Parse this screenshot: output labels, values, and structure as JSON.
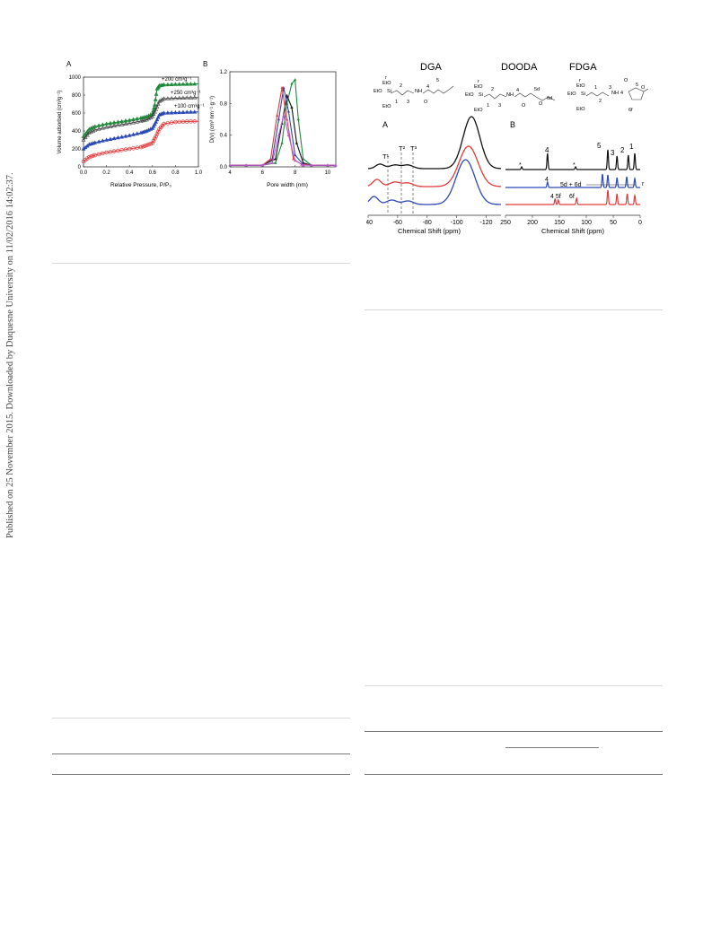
{
  "side_note": "Published on 25 November 2015. Downloaded by Duquesne University on 11/02/2016 14:02:37.",
  "figure_left": {
    "panel_a": {
      "letter": "A",
      "y_axis_label": "Volume adsorbed (cm³g⁻¹)",
      "x_axis_label": "Relative Pressure, P/P₀",
      "y_ticks": [
        "0",
        "200",
        "400",
        "600",
        "800",
        "1000"
      ],
      "x_ticks": [
        "0.0",
        "0.2",
        "0.4",
        "0.6",
        "0.8",
        "1.0"
      ],
      "offset_labels": [
        "+200 cm³g⁻¹",
        "+250 cm³g⁻¹",
        "+100 cm³g⁻¹"
      ]
    },
    "panel_b": {
      "letter": "B",
      "y_axis_label": "D(v) (cm³ nm⁻¹ g⁻¹)",
      "x_axis_label": "Pore width (nm)",
      "y_ticks": [
        "0.0",
        "0.4",
        "0.8",
        "1.2"
      ],
      "x_ticks": [
        "4",
        "6",
        "8",
        "10"
      ]
    }
  },
  "figure_right": {
    "structures": [
      {
        "name": "DGA",
        "labels": [
          "r",
          "EtO",
          "EtO",
          "Si",
          "EtO",
          "2",
          "1",
          "3",
          "NH",
          "4",
          "5",
          "O"
        ]
      },
      {
        "name": "DOODA",
        "labels": [
          "r",
          "EtO",
          "EtO",
          "Si",
          "EtO",
          "2",
          "1",
          "3",
          "NH",
          "4",
          "5d",
          "O",
          "6d",
          "O"
        ]
      },
      {
        "name": "FDGA",
        "labels": [
          "r",
          "EtO",
          "EtO",
          "Si",
          "EtO",
          "1",
          "2",
          "3",
          "NH",
          "4",
          "O",
          "5",
          "6f",
          "O"
        ]
      }
    ],
    "panel_a": {
      "letter": "A",
      "x_ticks": [
        "-40",
        "-60",
        "-80",
        "-100",
        "-120"
      ],
      "x_axis_label": "Chemical Shift (ppm)",
      "peak_labels": [
        "T¹",
        "T²",
        "T³"
      ]
    },
    "panel_b": {
      "letter": "B",
      "x_ticks": [
        "250",
        "200",
        "150",
        "100",
        "50",
        "0"
      ],
      "x_axis_label": "Chemical Shift (ppm)",
      "peak_labels": [
        "4",
        "5",
        "3",
        "2",
        "1",
        "4",
        "5d + 6d",
        "r",
        "4 5f",
        "6f",
        "*",
        "*"
      ]
    }
  },
  "chart_data": [
    {
      "type": "scatter",
      "xlabel": "Relative Pressure, P/P₀",
      "ylabel": "Volume adsorbed (cm³g⁻¹)",
      "xlim": [
        0,
        1.0
      ],
      "ylim": [
        0,
        1000
      ],
      "series": [
        {
          "color": "#1e8a3a",
          "marker": "filled-triangle",
          "x": [
            0.0,
            0.05,
            0.1,
            0.2,
            0.3,
            0.4,
            0.5,
            0.55,
            0.6,
            0.62,
            0.64,
            0.66,
            0.7,
            0.8,
            0.9,
            1.0
          ],
          "y": [
            340,
            420,
            450,
            480,
            500,
            520,
            545,
            560,
            590,
            690,
            870,
            905,
            915,
            920,
            922,
            925
          ]
        },
        {
          "color": "#444444",
          "marker": "open-triangle",
          "x": [
            0.0,
            0.05,
            0.1,
            0.2,
            0.3,
            0.4,
            0.5,
            0.55,
            0.6,
            0.63,
            0.66,
            0.7,
            0.8,
            0.9,
            1.0
          ],
          "y": [
            300,
            380,
            410,
            440,
            465,
            485,
            510,
            525,
            560,
            640,
            730,
            760,
            765,
            770,
            772
          ]
        },
        {
          "color": "#2a49b5",
          "marker": "filled-triangle",
          "x": [
            0.0,
            0.05,
            0.1,
            0.2,
            0.3,
            0.4,
            0.5,
            0.55,
            0.6,
            0.63,
            0.66,
            0.7,
            0.8,
            0.9,
            1.0
          ],
          "y": [
            200,
            250,
            270,
            300,
            325,
            350,
            380,
            400,
            430,
            500,
            580,
            600,
            605,
            610,
            612
          ]
        },
        {
          "color": "#e23a3a",
          "marker": "open-circle",
          "x": [
            0.0,
            0.05,
            0.1,
            0.2,
            0.3,
            0.4,
            0.5,
            0.55,
            0.6,
            0.63,
            0.66,
            0.7,
            0.8,
            0.9,
            1.0
          ],
          "y": [
            60,
            110,
            130,
            160,
            180,
            200,
            220,
            240,
            265,
            340,
            420,
            480,
            500,
            505,
            508
          ]
        }
      ]
    },
    {
      "type": "line",
      "xlabel": "Pore width (nm)",
      "ylabel": "D(v) (cm³ nm⁻¹ g⁻¹)",
      "xlim": [
        4,
        10.5
      ],
      "ylim": [
        0,
        1.2
      ],
      "series": [
        {
          "color": "#1e8a3a",
          "x": [
            4,
            5,
            6,
            6.8,
            7.2,
            7.5,
            7.8,
            8.0,
            8.2,
            8.5,
            9,
            10,
            10.5
          ],
          "y": [
            0.02,
            0.02,
            0.02,
            0.05,
            0.3,
            0.8,
            1.05,
            1.1,
            0.6,
            0.1,
            0.02,
            0.02,
            0.02
          ]
        },
        {
          "color": "#111111",
          "x": [
            4,
            5,
            6,
            6.8,
            7.2,
            7.5,
            7.8,
            8.1,
            8.5,
            9,
            10,
            10.5
          ],
          "y": [
            0.02,
            0.02,
            0.02,
            0.1,
            0.55,
            0.9,
            0.75,
            0.3,
            0.05,
            0.02,
            0.02,
            0.02
          ]
        },
        {
          "color": "#2a49b5",
          "x": [
            4,
            5,
            6,
            6.6,
            7.0,
            7.3,
            7.6,
            8.0,
            8.5,
            9,
            10,
            10.5
          ],
          "y": [
            0.02,
            0.02,
            0.02,
            0.1,
            0.6,
            1.0,
            0.7,
            0.15,
            0.03,
            0.02,
            0.02,
            0.02
          ]
        },
        {
          "color": "#e23a3a",
          "x": [
            4,
            5,
            6,
            6.5,
            6.9,
            7.2,
            7.5,
            7.9,
            8.4,
            9,
            10,
            10.5
          ],
          "y": [
            0.02,
            0.02,
            0.02,
            0.1,
            0.65,
            1.0,
            0.6,
            0.1,
            0.03,
            0.02,
            0.02,
            0.02
          ]
        },
        {
          "color": "#b45ad2",
          "x": [
            4,
            5,
            6,
            6.6,
            7.0,
            7.3,
            7.6,
            8.0,
            8.5,
            9,
            10,
            10.5
          ],
          "y": [
            0.02,
            0.02,
            0.02,
            0.05,
            0.4,
            0.65,
            0.4,
            0.08,
            0.02,
            0.02,
            0.02,
            0.02
          ]
        }
      ]
    }
  ]
}
